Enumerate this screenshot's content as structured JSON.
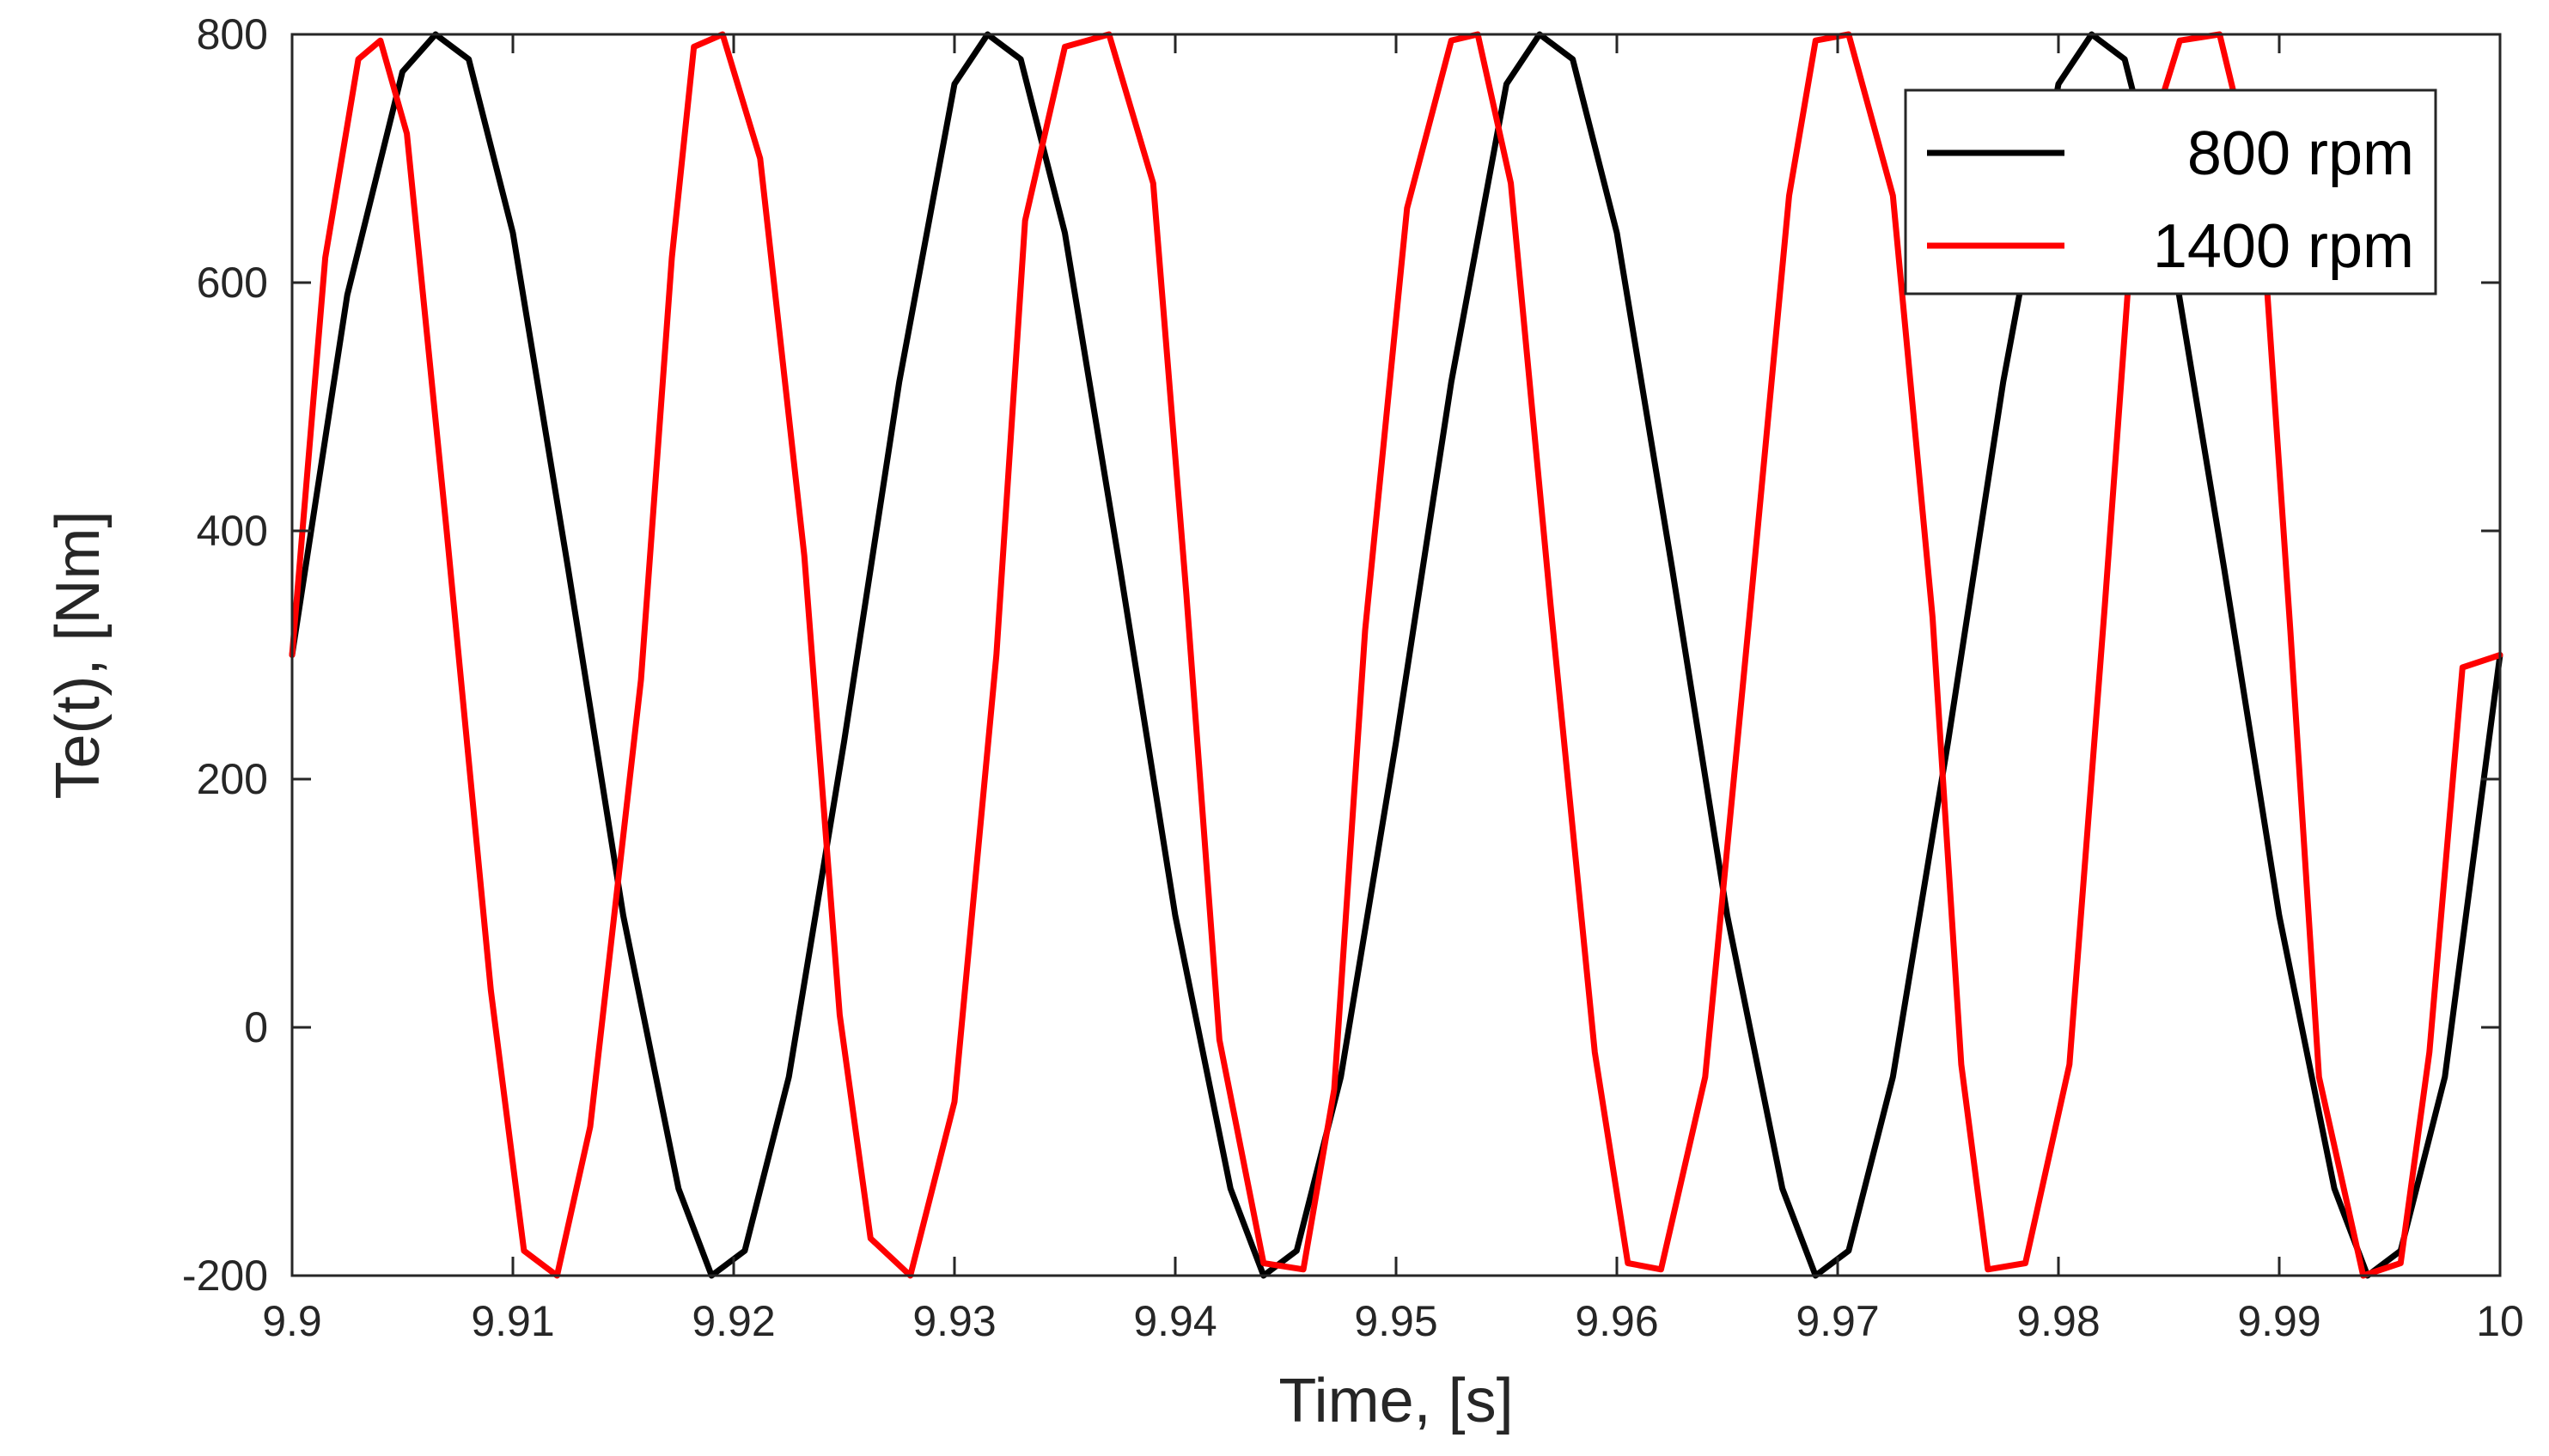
{
  "chart_data": {
    "type": "line",
    "title": "",
    "xlabel": "Time, [s]",
    "ylabel": "Te(t), [Nm]",
    "xlim": [
      9.9,
      10.0
    ],
    "ylim": [
      -200,
      800
    ],
    "xticks": [
      9.9,
      9.91,
      9.92,
      9.93,
      9.94,
      9.95,
      9.96,
      9.97,
      9.98,
      9.99,
      10
    ],
    "xtick_labels": [
      "9.9",
      "9.91",
      "9.92",
      "9.93",
      "9.94",
      "9.95",
      "9.96",
      "9.97",
      "9.98",
      "9.99",
      "10"
    ],
    "yticks": [
      -200,
      0,
      200,
      400,
      600,
      800
    ],
    "ytick_labels": [
      "-200",
      "0",
      "200",
      "400",
      "600",
      "800"
    ],
    "grid": false,
    "legend_position": "top-right",
    "series": [
      {
        "name": "800 rpm",
        "color": "#000000",
        "x": [
          9.9,
          9.9025,
          9.905,
          9.9065,
          9.908,
          9.91,
          9.9125,
          9.915,
          9.9175,
          9.919,
          9.9205,
          9.9225,
          9.925,
          9.9275,
          9.93,
          9.9315,
          9.933,
          9.935,
          9.9375,
          9.94,
          9.9425,
          9.944,
          9.9455,
          9.9475,
          9.95,
          9.9525,
          9.955,
          9.9565,
          9.958,
          9.96,
          9.9625,
          9.965,
          9.9675,
          9.969,
          9.9705,
          9.9725,
          9.975,
          9.9775,
          9.98,
          9.9815,
          9.983,
          9.985,
          9.9875,
          9.99,
          9.9925,
          9.994,
          9.9955,
          9.9975,
          10.0
        ],
        "y": [
          300,
          590,
          770,
          800,
          780,
          640,
          370,
          90,
          -130,
          -200,
          -180,
          -40,
          230,
          520,
          760,
          800,
          780,
          640,
          370,
          90,
          -130,
          -200,
          -180,
          -40,
          230,
          520,
          760,
          800,
          780,
          640,
          370,
          90,
          -130,
          -200,
          -180,
          -40,
          230,
          520,
          760,
          800,
          780,
          640,
          370,
          90,
          -130,
          -200,
          -180,
          -40,
          300
        ]
      },
      {
        "name": "1400 rpm",
        "color": "#ff0000",
        "x": [
          9.9,
          9.9015,
          9.903,
          9.904,
          9.9052,
          9.907,
          9.909,
          9.9105,
          9.912,
          9.9135,
          9.9158,
          9.9172,
          9.9182,
          9.9195,
          9.9212,
          9.9232,
          9.9248,
          9.9262,
          9.928,
          9.93,
          9.9319,
          9.9332,
          9.935,
          9.937,
          9.939,
          9.9405,
          9.942,
          9.944,
          9.9458,
          9.9472,
          9.9486,
          9.9505,
          9.9525,
          9.9537,
          9.9552,
          9.957,
          9.959,
          9.9605,
          9.962,
          9.964,
          9.966,
          9.9678,
          9.969,
          9.9705,
          9.9725,
          9.9743,
          9.9756,
          9.9768,
          9.9785,
          9.9805,
          9.9821,
          9.9835,
          9.9855,
          9.9873,
          9.9892,
          9.9905,
          9.9918,
          9.9938,
          9.9955,
          9.9968,
          9.9983,
          10.0
        ],
        "y": [
          300,
          620,
          780,
          795,
          720,
          400,
          30,
          -180,
          -200,
          -80,
          280,
          620,
          790,
          800,
          700,
          380,
          10,
          -170,
          -200,
          -60,
          300,
          650,
          790,
          800,
          680,
          350,
          -10,
          -190,
          -195,
          -50,
          320,
          660,
          795,
          800,
          680,
          340,
          -20,
          -190,
          -195,
          -40,
          330,
          670,
          795,
          800,
          670,
          330,
          -30,
          -195,
          -190,
          -30,
          340,
          680,
          795,
          800,
          660,
          320,
          -40,
          -200,
          -190,
          -20,
          290,
          300
        ]
      }
    ]
  }
}
